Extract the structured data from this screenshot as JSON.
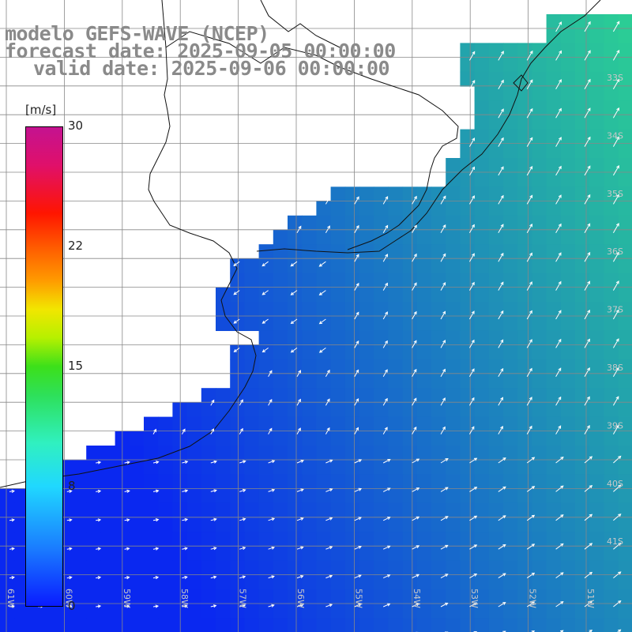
{
  "title": {
    "line1": "modelo GEFS-WAVE (NCEP)",
    "line2": "forecast date: 2025-09-05 00:00:00",
    "line3": "valid date: 2025-09-06 00:00:00"
  },
  "colorbar": {
    "unit": "[m/s]",
    "ticks": [
      "30",
      "22",
      "15",
      "8",
      "0"
    ],
    "colors": [
      "#0a1cff",
      "#1a7cff",
      "#20d8ff",
      "#2ee05a",
      "#f2e600",
      "#ff5a00",
      "#ff1500",
      "#c41290"
    ]
  },
  "map": {
    "lat_labels": [
      "33S",
      "34S",
      "35S",
      "36S",
      "37S",
      "38S",
      "39S",
      "40S",
      "41S"
    ],
    "lon_labels": [
      "61W",
      "60W",
      "59W",
      "58W",
      "57W",
      "56W",
      "55W",
      "54W",
      "53W",
      "52W",
      "51W"
    ],
    "land_color": "#ffffff",
    "ocean_low_color": "#0a2ff0",
    "ocean_high_color": "#3ef08a",
    "grid_color": "#888888",
    "arrow_color": "#ffffff",
    "extent": {
      "lon_min": -61.2,
      "lon_max": -50.3,
      "lat_min": -41.2,
      "lat_max": -32.2
    }
  }
}
